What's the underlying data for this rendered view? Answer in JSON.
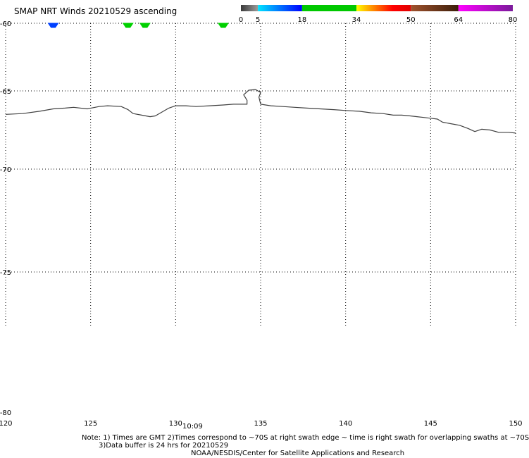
{
  "header": {
    "title": "SMAP NRT Winds 20210529 ascending"
  },
  "colorbar": {
    "ticks": [
      "0",
      "5",
      "18",
      "34",
      "50",
      "64",
      "80"
    ],
    "tick_values": [
      0,
      5,
      18,
      34,
      50,
      64,
      80
    ],
    "min": 0,
    "max": 80,
    "segments": [
      {
        "from": 0,
        "to": 5,
        "colors": [
          "#3a3a3a",
          "#9a9a9a"
        ]
      },
      {
        "from": 5,
        "to": 18,
        "colors": [
          "#00e5ff",
          "#0000ff"
        ]
      },
      {
        "from": 18,
        "to": 34,
        "colors": [
          "#00c800",
          "#00c800"
        ]
      },
      {
        "from": 34,
        "to": 50,
        "colors": [
          "#ffff00",
          "#ff8000",
          "#ff0000",
          "#e00000"
        ]
      },
      {
        "from": 50,
        "to": 64,
        "colors": [
          "#a0522d",
          "#3c1e0a"
        ]
      },
      {
        "from": 64,
        "to": 80,
        "colors": [
          "#ff00ff",
          "#7a1a9a"
        ]
      }
    ]
  },
  "map": {
    "lon_labels": [
      "120",
      "125",
      "130",
      "135",
      "140",
      "145",
      "150"
    ],
    "lon_values": [
      120,
      125,
      130,
      135,
      140,
      145,
      150
    ],
    "lat_labels": [
      "-60",
      "-65",
      "-70",
      "-75",
      "-80"
    ],
    "lat_values": [
      -60,
      -65,
      -70,
      -75,
      -80
    ],
    "time_label": "10:09",
    "time_lon": 131.0,
    "coast_color": "#404040",
    "coastline": [
      [
        120.0,
        -66.5
      ],
      [
        121.0,
        -66.45
      ],
      [
        122.0,
        -66.3
      ],
      [
        122.8,
        -66.15
      ],
      [
        123.5,
        -66.1
      ],
      [
        124.0,
        -66.05
      ],
      [
        124.8,
        -66.15
      ],
      [
        125.5,
        -66.0
      ],
      [
        126.0,
        -65.95
      ],
      [
        126.8,
        -66.0
      ],
      [
        127.2,
        -66.2
      ],
      [
        127.5,
        -66.45
      ],
      [
        128.0,
        -66.55
      ],
      [
        128.5,
        -66.65
      ],
      [
        128.8,
        -66.6
      ],
      [
        129.2,
        -66.35
      ],
      [
        129.6,
        -66.1
      ],
      [
        130.0,
        -65.95
      ],
      [
        130.6,
        -65.95
      ],
      [
        131.2,
        -66.0
      ],
      [
        132.0,
        -65.95
      ],
      [
        132.8,
        -65.9
      ],
      [
        133.4,
        -65.85
      ],
      [
        134.2,
        -65.85
      ],
      [
        134.2,
        -65.6
      ],
      [
        134.0,
        -65.25
      ],
      [
        134.3,
        -64.95
      ],
      [
        134.7,
        -64.9
      ],
      [
        135.0,
        -65.1
      ],
      [
        134.9,
        -65.4
      ],
      [
        135.0,
        -65.85
      ],
      [
        135.6,
        -65.95
      ],
      [
        136.3,
        -66.0
      ],
      [
        137.0,
        -66.05
      ],
      [
        137.7,
        -66.1
      ],
      [
        138.5,
        -66.15
      ],
      [
        139.3,
        -66.2
      ],
      [
        140.0,
        -66.25
      ],
      [
        140.8,
        -66.3
      ],
      [
        141.5,
        -66.4
      ],
      [
        142.2,
        -66.45
      ],
      [
        142.8,
        -66.55
      ],
      [
        143.3,
        -66.55
      ],
      [
        143.8,
        -66.6
      ],
      [
        144.2,
        -66.65
      ],
      [
        144.6,
        -66.7
      ],
      [
        145.0,
        -66.75
      ],
      [
        145.4,
        -66.8
      ],
      [
        145.7,
        -67.0
      ],
      [
        146.2,
        -67.1
      ],
      [
        146.7,
        -67.2
      ],
      [
        147.2,
        -67.4
      ],
      [
        147.6,
        -67.6
      ],
      [
        148.0,
        -67.45
      ],
      [
        148.5,
        -67.5
      ],
      [
        149.0,
        -67.65
      ],
      [
        149.6,
        -67.65
      ],
      [
        150.0,
        -67.7
      ]
    ]
  },
  "wind_barbs": [
    {
      "lon": 122.8,
      "color": "#0040ff"
    },
    {
      "lon": 127.2,
      "color": "#00d000"
    },
    {
      "lon": 128.2,
      "color": "#00d000"
    },
    {
      "lon": 132.8,
      "color": "#00d000"
    }
  ],
  "footer": {
    "note1": "Note: 1) Times are GMT  2)Times correspond to ~70S at right swath edge ~ time is right swath for overlapping swaths at ~70S",
    "note2": "3)Data buffer is 24 hrs for 20210529",
    "credit": "NOAA/NESDIS/Center for Satellite Applications and Research"
  }
}
